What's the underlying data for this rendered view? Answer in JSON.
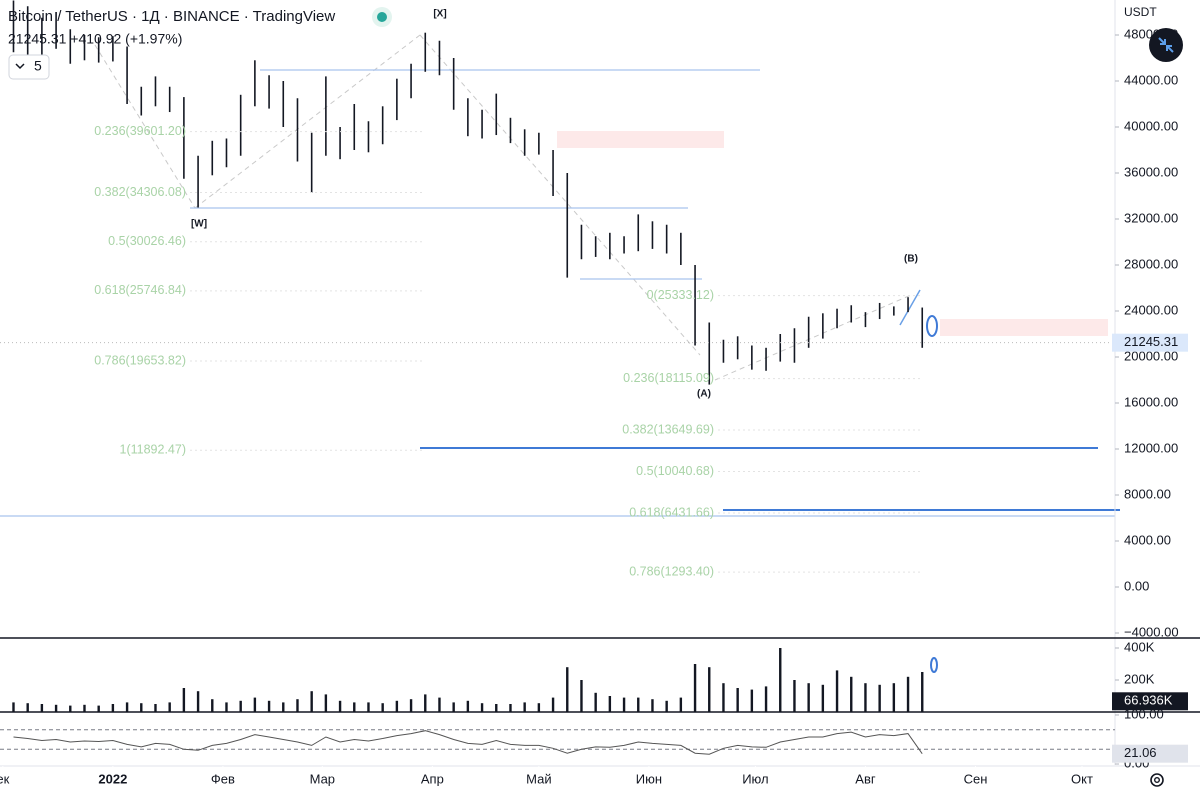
{
  "header": {
    "title": "Bitcoin / TetherUS · 1Д · BINANCE · TradingView",
    "quote": "21245.31 +410.92 (+1.97%)",
    "indicator_count": "5"
  },
  "chart_data": [
    {
      "type": "range-bar",
      "currency": "USDT",
      "color": "#131722",
      "x": [
        -28,
        -24,
        -20,
        -16,
        -12,
        -8,
        -4,
        0,
        4,
        8,
        12,
        16,
        20,
        24,
        28,
        32,
        36,
        40,
        44,
        48,
        52,
        56,
        60,
        64,
        68,
        72,
        76,
        80,
        84,
        88,
        92,
        96,
        100,
        104,
        108,
        112,
        116,
        120,
        124,
        128,
        132,
        136,
        140,
        144,
        148,
        152,
        156,
        160,
        164,
        168,
        172,
        176,
        180,
        184,
        188,
        192,
        196,
        200,
        204,
        208,
        212,
        216,
        220,
        224,
        228
      ],
      "high": [
        51000,
        50500,
        49500,
        50000,
        48500,
        48000,
        47800,
        47900,
        47000,
        43500,
        44400,
        43500,
        42600,
        37500,
        38800,
        39000,
        42800,
        45800,
        44500,
        44000,
        42500,
        39500,
        44400,
        40000,
        42000,
        40500,
        41800,
        44200,
        45500,
        48200,
        47500,
        46000,
        42500,
        41500,
        42900,
        40800,
        39800,
        39500,
        38000,
        36000,
        31500,
        30500,
        30800,
        30500,
        32400,
        31800,
        31500,
        30800,
        28000,
        23000,
        21500,
        21800,
        21000,
        20800,
        22000,
        22500,
        23500,
        23800,
        24200,
        24500,
        23900,
        24700,
        24400,
        25200,
        24300
      ],
      "low": [
        46500,
        45800,
        46000,
        46800,
        45500,
        45800,
        45600,
        45700,
        42000,
        41000,
        41800,
        41300,
        35500,
        33000,
        35800,
        36500,
        37500,
        41800,
        41600,
        40000,
        37000,
        34300,
        37500,
        37200,
        38000,
        37800,
        38500,
        40600,
        42500,
        44800,
        44500,
        41500,
        39200,
        39000,
        39300,
        38600,
        37500,
        37600,
        34000,
        26900,
        28500,
        28700,
        28500,
        29000,
        29200,
        29400,
        29000,
        28000,
        21000,
        17600,
        19500,
        19800,
        18900,
        18800,
        19600,
        19500,
        20800,
        21600,
        22500,
        23000,
        22600,
        23300,
        23600,
        23900,
        20800
      ],
      "xlim": [
        -31.8,
        282.3
      ],
      "xticks": [
        {
          "value": -31,
          "label": "ек"
        },
        {
          "value": 0,
          "label": "2022"
        },
        {
          "value": 31,
          "label": "Фев"
        },
        {
          "value": 59,
          "label": "Мар"
        },
        {
          "value": 90,
          "label": "Апр"
        },
        {
          "value": 120,
          "label": "Май"
        },
        {
          "value": 151,
          "label": "Июн"
        },
        {
          "value": 181,
          "label": "Июл"
        },
        {
          "value": 212,
          "label": "Авг"
        },
        {
          "value": 243,
          "label": "Сен"
        },
        {
          "value": 273,
          "label": "Окт"
        }
      ],
      "ylim": [
        -4435,
        51043
      ],
      "yticks": [
        {
          "value": 48000,
          "label": "48000.00"
        },
        {
          "value": 44000,
          "label": "44000.00"
        },
        {
          "value": 40000,
          "label": "40000.00"
        },
        {
          "value": 36000,
          "label": "36000.00"
        },
        {
          "value": 32000,
          "label": "32000.00"
        },
        {
          "value": 28000,
          "label": "28000.00"
        },
        {
          "value": 24000,
          "label": "24000.00"
        },
        {
          "value": 20000,
          "label": "20000.00"
        },
        {
          "value": 16000,
          "label": "16000.00"
        },
        {
          "value": 12000,
          "label": "12000.00"
        },
        {
          "value": 8000,
          "label": "8000.00"
        },
        {
          "value": 4000,
          "label": "4000.00"
        },
        {
          "value": 0,
          "label": "0.00"
        },
        {
          "value": -4000,
          "label": "−4000.00"
        }
      ],
      "last": 21245.31,
      "fib_left": [
        {
          "text": "0.236(39601.20)",
          "value": 39601.2
        },
        {
          "text": "0.382(34306.08)",
          "value": 34306.08
        },
        {
          "text": "0.5(30026.46)",
          "value": 30026.46
        },
        {
          "text": "0.618(25746.84)",
          "value": 25746.84
        },
        {
          "text": "0.786(19653.82)",
          "value": 19653.82
        },
        {
          "text": "1(11892.47)",
          "value": 11892.47
        }
      ],
      "fib_right": [
        {
          "text": "0(25333.12)",
          "value": 25333.12
        },
        {
          "text": "0.236(18115.09)",
          "value": 18115.09
        },
        {
          "text": "0.382(13649.69)",
          "value": 13649.69
        },
        {
          "text": "0.5(10040.68)",
          "value": 10040.68
        },
        {
          "text": "0.618(6431.66)",
          "value": 6431.66
        },
        {
          "text": "0.786(1293.40)",
          "value": 1293.4
        }
      ],
      "wave_labels": [
        "[X]",
        "[W]",
        "(A)",
        "(B)"
      ]
    },
    {
      "type": "bar",
      "color": "#131722",
      "values": [
        60000,
        55000,
        50000,
        45000,
        40000,
        45000,
        40000,
        50000,
        60000,
        55000,
        50000,
        60000,
        150000,
        130000,
        80000,
        60000,
        70000,
        90000,
        70000,
        60000,
        80000,
        130000,
        110000,
        70000,
        60000,
        60000,
        55000,
        70000,
        80000,
        110000,
        90000,
        60000,
        70000,
        55000,
        50000,
        50000,
        60000,
        55000,
        90000,
        280000,
        200000,
        120000,
        100000,
        90000,
        90000,
        80000,
        70000,
        90000,
        300000,
        280000,
        180000,
        150000,
        140000,
        160000,
        400000,
        200000,
        180000,
        170000,
        260000,
        220000,
        180000,
        170000,
        180000,
        220000,
        250000
      ],
      "ylim": [
        0,
        450000
      ],
      "yticks": [
        {
          "value": 400000,
          "label": "400K"
        },
        {
          "value": 200000,
          "label": "200K"
        }
      ],
      "last": {
        "value": 66936,
        "label": "66.936K"
      }
    },
    {
      "type": "line",
      "color": "#555",
      "values": [
        55,
        52,
        48,
        50,
        45,
        47,
        46,
        48,
        40,
        35,
        42,
        40,
        30,
        28,
        38,
        42,
        50,
        60,
        55,
        50,
        45,
        38,
        55,
        45,
        50,
        47,
        52,
        58,
        62,
        68,
        60,
        50,
        42,
        40,
        48,
        40,
        38,
        38,
        32,
        22,
        30,
        35,
        34,
        38,
        45,
        42,
        40,
        38,
        22,
        20,
        32,
        38,
        35,
        34,
        45,
        50,
        55,
        55,
        62,
        65,
        55,
        60,
        58,
        62,
        21.06
      ],
      "ylim": [
        -2,
        102
      ],
      "yticks": [
        {
          "value": 100,
          "label": "100.00"
        },
        {
          "value": 0,
          "label": "0.00"
        }
      ],
      "levels": [
        70,
        30
      ]
    }
  ]
}
